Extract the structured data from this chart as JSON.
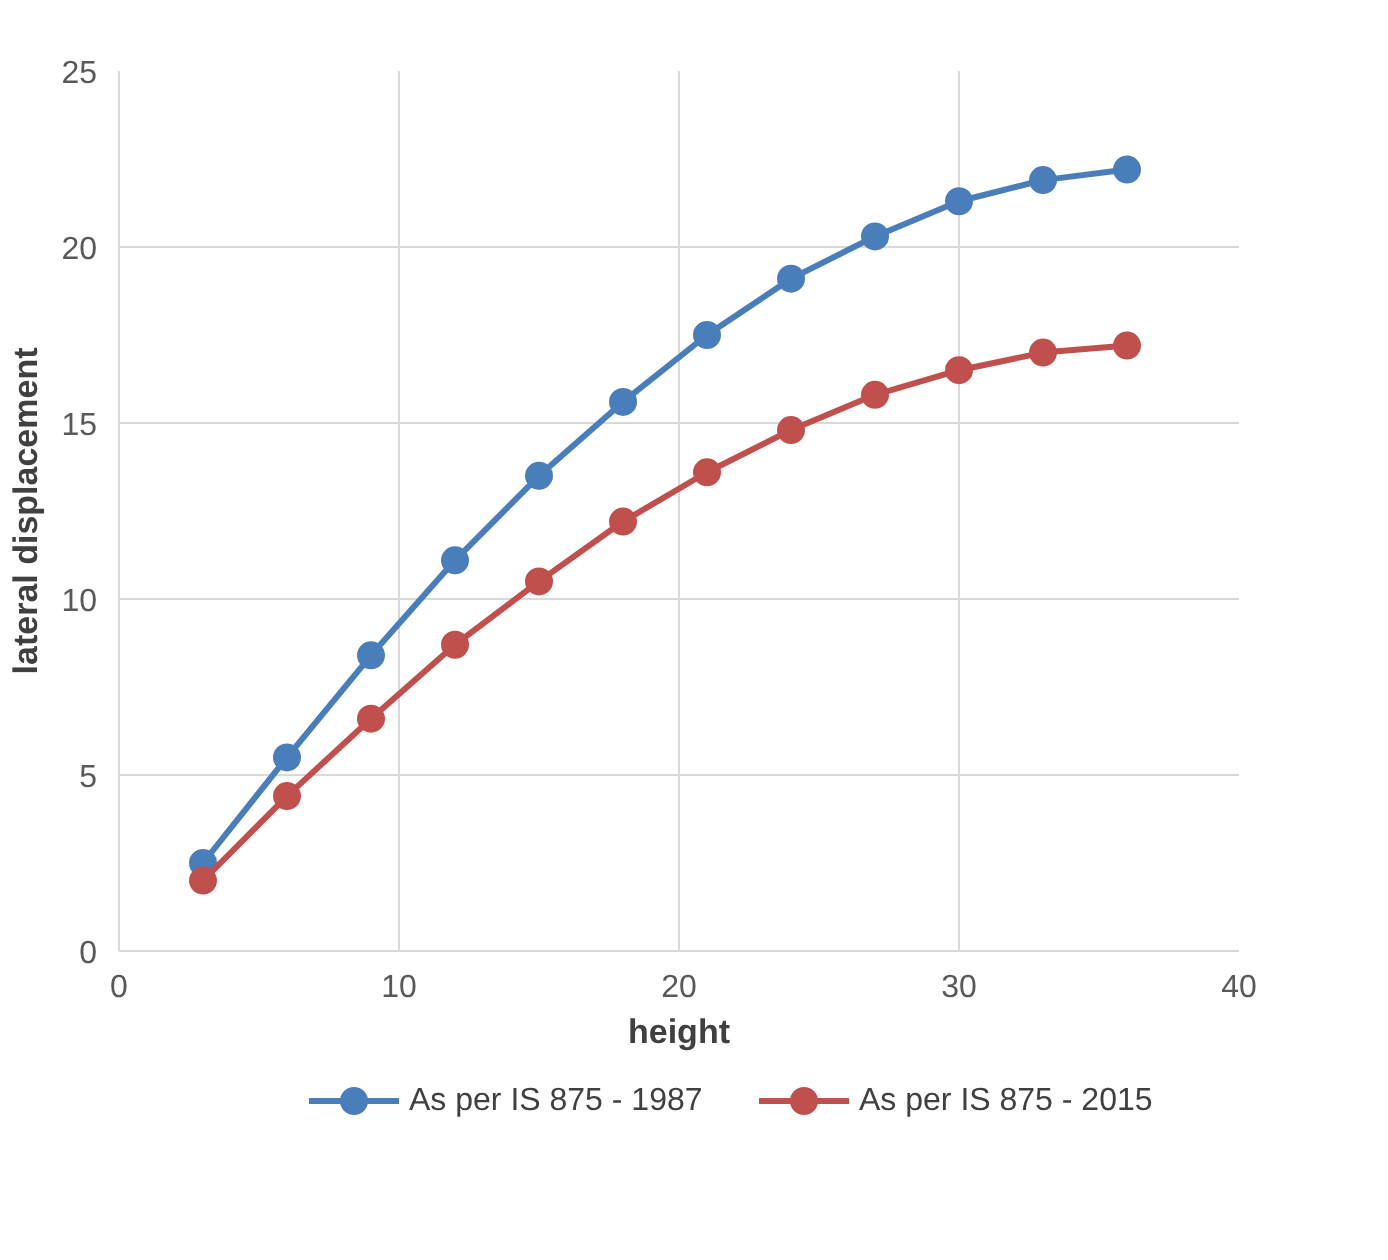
{
  "chart_data": {
    "type": "line",
    "xlabel": "height",
    "ylabel": "lateral displacement",
    "x": [
      3,
      6,
      9,
      12,
      15,
      18,
      21,
      24,
      27,
      30,
      33,
      36
    ],
    "xlim": [
      0,
      40
    ],
    "xticks": [
      0,
      10,
      20,
      30,
      40
    ],
    "ylim": [
      0,
      25
    ],
    "yticks": [
      0,
      5,
      10,
      15,
      20,
      25
    ],
    "grid": true,
    "legend": "bottom",
    "marker": "circle",
    "line_style": "solid",
    "series": [
      {
        "name": "As per IS 875 - 1987",
        "color": "#4a7ebb",
        "values": [
          2.5,
          5.5,
          8.4,
          11.1,
          13.5,
          15.6,
          17.5,
          19.1,
          20.3,
          21.3,
          21.9,
          22.2
        ]
      },
      {
        "name": "As per IS 875 - 2015",
        "color": "#c0504d",
        "values": [
          2.0,
          4.4,
          6.6,
          8.7,
          10.5,
          12.2,
          13.6,
          14.8,
          15.8,
          16.5,
          17.0,
          17.2
        ]
      }
    ]
  }
}
